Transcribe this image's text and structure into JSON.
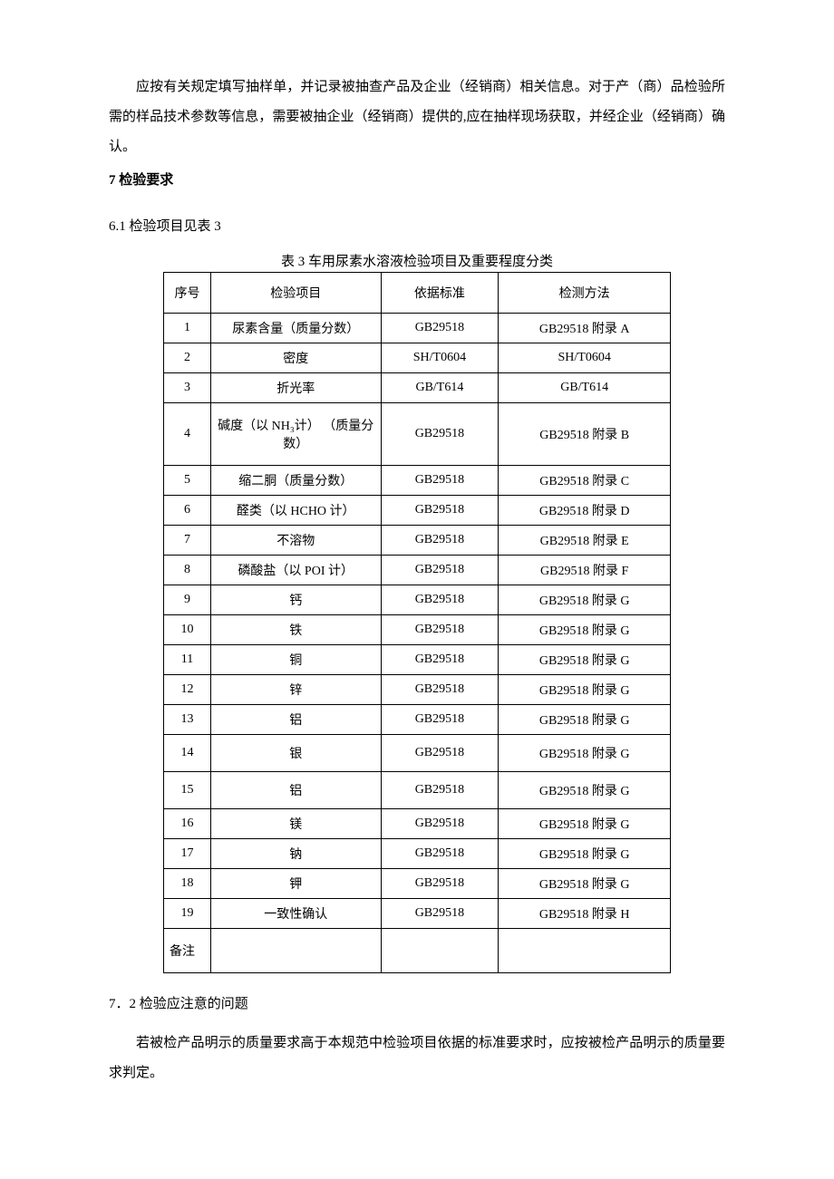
{
  "intro_para": "应按有关规定填写抽样单，并记录被抽查产品及企业（经销商）相关信息。对于产（商）品检验所需的样品技术参数等信息，需要被抽企业（经销商）提供的,应在抽样现场获取，并经企业（经销商）确认。",
  "section7_heading": "7 检验要求",
  "section6_1": "6.1  检验项目见表 3",
  "table_caption": "表 3 车用尿素水溶液检验项目及重要程度分类",
  "columns": {
    "num": "序号",
    "project": "检验项目",
    "standard": "依据标准",
    "method": "检测方法"
  },
  "rows": [
    {
      "num": "1",
      "project": "尿素含量（质量分数）",
      "standard": "GB29518",
      "method": "GB29518 附录 A",
      "cls": ""
    },
    {
      "num": "2",
      "project": "密度",
      "standard": "SH/T0604",
      "method": "SH/T0604",
      "cls": ""
    },
    {
      "num": "3",
      "project": "折光率",
      "standard": "GB/T614",
      "method": "GB/T614",
      "cls": ""
    },
    {
      "num": "4",
      "project": "碱度（以 NH₃计） （质量分数）",
      "standard": "GB29518",
      "method": "GB29518 附录 B",
      "cls": "row-tall"
    },
    {
      "num": "5",
      "project": "缩二胴（质量分数）",
      "standard": "GB29518",
      "method": "GB29518 附录 C",
      "cls": ""
    },
    {
      "num": "6",
      "project": "醛类（以 HCHO 计）",
      "standard": "GB29518",
      "method": "GB29518 附录 D",
      "cls": ""
    },
    {
      "num": "7",
      "project": "不溶物",
      "standard": "GB29518",
      "method": "GB29518 附录 E",
      "cls": ""
    },
    {
      "num": "8",
      "project": "磷酸盐（以 POI 计）",
      "standard": "GB29518",
      "method": "GB29518 附录 F",
      "cls": ""
    },
    {
      "num": "9",
      "project": "钙",
      "standard": "GB29518",
      "method": "GB29518 附录 G",
      "cls": ""
    },
    {
      "num": "10",
      "project": "铁",
      "standard": "GB29518",
      "method": "GB29518 附录 G",
      "cls": ""
    },
    {
      "num": "11",
      "project": "铜",
      "standard": "GB29518",
      "method": "GB29518 附录 G",
      "cls": ""
    },
    {
      "num": "12",
      "project": "锌",
      "standard": "GB29518",
      "method": "GB29518 附录 G",
      "cls": ""
    },
    {
      "num": "13",
      "project": "铝",
      "standard": "GB29518",
      "method": "GB29518 附录 G",
      "cls": ""
    },
    {
      "num": "14",
      "project": "银",
      "standard": "GB29518",
      "method": "GB29518 附录 G",
      "cls": "row-med"
    },
    {
      "num": "15",
      "project": "铝",
      "standard": "GB29518",
      "method": "GB29518 附录 G",
      "cls": "row-med"
    },
    {
      "num": "16",
      "project": "镁",
      "standard": "GB29518",
      "method": "GB29518 附录 G",
      "cls": ""
    },
    {
      "num": "17",
      "project": "钠",
      "standard": "GB29518",
      "method": "GB29518 附录 G",
      "cls": ""
    },
    {
      "num": "18",
      "project": "钾",
      "standard": "GB29518",
      "method": "GB29518 附录 G",
      "cls": ""
    },
    {
      "num": "19",
      "project": "一致性确认",
      "standard": "GB29518",
      "method": "GB29518 附录 H",
      "cls": ""
    }
  ],
  "note_label": "备注",
  "section7_2": "7．2 检验应注意的问题",
  "closing_para": "若被检产品明示的质量要求高于本规范中检验项目依据的标准要求时，应按被检产品明示的质量要求判定。"
}
